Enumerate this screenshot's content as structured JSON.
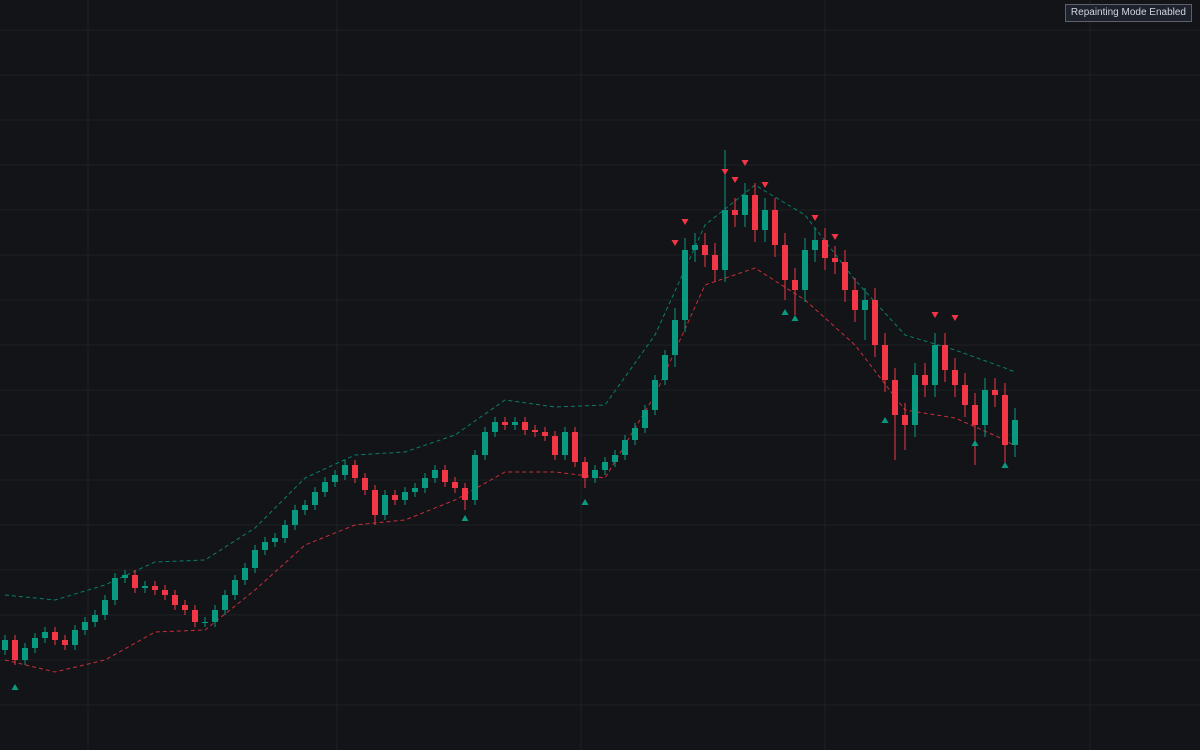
{
  "chart_data": {
    "type": "candlestick",
    "annotation": "Repainting Mode Enabled",
    "xlim": [
      -0.5,
      119.5
    ],
    "ylim": [
      0,
      750
    ],
    "xticks": [
      8.3,
      33.2,
      57.6,
      82,
      108.5
    ],
    "yticks": [
      45,
      90,
      135,
      180,
      225,
      270,
      315,
      360,
      405,
      450,
      495,
      540,
      585,
      630,
      675,
      720
    ],
    "grid": true,
    "up_color": "#089981",
    "down_color": "#f23645",
    "open": [
      100,
      110,
      90,
      102,
      112,
      118,
      110,
      105,
      120,
      128,
      135,
      150,
      172,
      175,
      162,
      164,
      160,
      155,
      145,
      140,
      128,
      128,
      140,
      155,
      170,
      182,
      200,
      208,
      212,
      225,
      240,
      245,
      258,
      268,
      275,
      285,
      272,
      260,
      235,
      255,
      250,
      258,
      262,
      272,
      280,
      268,
      262,
      250,
      295,
      318,
      328,
      325,
      328,
      320,
      318,
      314,
      295,
      318,
      288,
      272,
      280,
      288,
      295,
      310,
      322,
      340,
      370,
      395,
      430,
      500,
      505,
      495,
      480,
      540,
      535,
      555,
      520,
      540,
      505,
      470,
      460,
      500,
      510,
      492,
      488,
      460,
      440,
      450,
      405,
      370,
      335,
      325,
      375,
      365,
      405,
      380,
      365,
      345,
      325,
      360,
      355,
      305
    ],
    "high": [
      115,
      115,
      107,
      117,
      123,
      123,
      115,
      125,
      133,
      140,
      155,
      177,
      180,
      180,
      169,
      169,
      165,
      160,
      150,
      145,
      133,
      145,
      160,
      175,
      187,
      205,
      213,
      217,
      230,
      245,
      250,
      263,
      273,
      280,
      290,
      290,
      277,
      265,
      260,
      260,
      263,
      267,
      277,
      285,
      285,
      273,
      267,
      300,
      323,
      333,
      333,
      333,
      333,
      325,
      323,
      319,
      323,
      323,
      293,
      285,
      293,
      300,
      315,
      327,
      345,
      375,
      400,
      442,
      512,
      517,
      517,
      507,
      600,
      552,
      567,
      567,
      552,
      552,
      517,
      482,
      512,
      522,
      522,
      504,
      500,
      472,
      462,
      462,
      417,
      382,
      347,
      387,
      387,
      417,
      417,
      392,
      377,
      357,
      372,
      372,
      367,
      342
    ],
    "low": [
      95,
      85,
      85,
      97,
      107,
      105,
      100,
      100,
      115,
      123,
      130,
      145,
      167,
      157,
      157,
      155,
      150,
      140,
      135,
      123,
      123,
      123,
      135,
      150,
      165,
      177,
      195,
      203,
      207,
      220,
      235,
      240,
      253,
      263,
      270,
      267,
      255,
      225,
      230,
      245,
      245,
      253,
      257,
      267,
      263,
      257,
      240,
      245,
      290,
      313,
      320,
      320,
      315,
      313,
      309,
      290,
      290,
      283,
      262,
      267,
      275,
      283,
      290,
      305,
      317,
      335,
      365,
      383,
      418,
      488,
      483,
      468,
      468,
      523,
      523,
      508,
      508,
      493,
      450,
      435,
      448,
      488,
      480,
      476,
      448,
      428,
      410,
      393,
      358,
      290,
      300,
      313,
      353,
      353,
      368,
      353,
      333,
      285,
      313,
      343,
      285,
      293
    ],
    "close": [
      110,
      90,
      102,
      112,
      118,
      110,
      105,
      120,
      128,
      135,
      150,
      172,
      175,
      162,
      164,
      160,
      155,
      145,
      140,
      128,
      128,
      140,
      155,
      170,
      182,
      200,
      208,
      212,
      225,
      240,
      245,
      258,
      268,
      275,
      285,
      272,
      260,
      235,
      255,
      250,
      258,
      262,
      272,
      280,
      268,
      262,
      250,
      295,
      318,
      328,
      325,
      328,
      320,
      318,
      314,
      295,
      318,
      288,
      272,
      280,
      288,
      295,
      310,
      322,
      340,
      370,
      395,
      430,
      500,
      505,
      495,
      480,
      540,
      535,
      555,
      520,
      540,
      505,
      470,
      460,
      500,
      510,
      492,
      488,
      460,
      440,
      450,
      405,
      370,
      335,
      325,
      375,
      365,
      405,
      380,
      365,
      345,
      325,
      360,
      355,
      305,
      330
    ],
    "envelope": {
      "index": [
        0,
        5,
        10,
        15,
        20,
        25,
        30,
        35,
        40,
        45,
        50,
        55,
        60,
        65,
        70,
        75,
        80,
        85,
        90,
        95,
        100,
        101
      ],
      "upper": [
        155,
        150,
        165,
        188,
        190,
        222,
        272,
        295,
        298,
        315,
        350,
        343,
        345,
        415,
        525,
        565,
        535,
        470,
        415,
        400,
        382,
        378
      ],
      "lower": [
        90,
        78,
        90,
        118,
        120,
        160,
        205,
        225,
        230,
        250,
        278,
        278,
        272,
        355,
        465,
        482,
        450,
        405,
        340,
        332,
        310,
        304
      ],
      "upper_color": "#089981",
      "lower_color": "#f23645"
    },
    "signals": {
      "buy": {
        "index": [
          1,
          46,
          58,
          78,
          79,
          88,
          97,
          100
        ],
        "values": [
          63,
          232,
          248,
          438,
          432,
          330,
          307,
          285
        ],
        "color": "#089981"
      },
      "sell": {
        "index": [
          67,
          68,
          72,
          73,
          74,
          76,
          81,
          83,
          93,
          95
        ],
        "values": [
          507,
          528,
          578,
          570,
          587,
          565,
          532,
          513,
          435,
          432
        ],
        "color": "#f23645"
      }
    }
  }
}
